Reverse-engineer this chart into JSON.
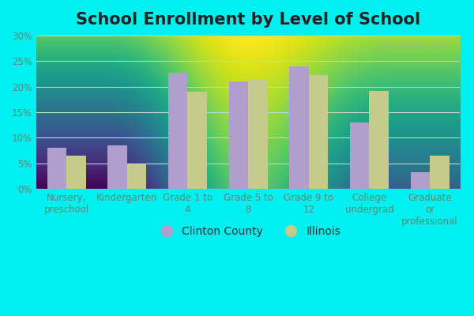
{
  "title": "School Enrollment by Level of School",
  "categories": [
    "Nursery,\npreschool",
    "Kindergarten",
    "Grade 1 to\n4",
    "Grade 5 to\n8",
    "Grade 9 to\n12",
    "College\nundergrad",
    "Graduate\nor\nprofessional"
  ],
  "clinton_county": [
    8.0,
    8.5,
    22.7,
    21.0,
    24.0,
    13.0,
    3.2
  ],
  "illinois": [
    6.5,
    4.8,
    19.0,
    21.3,
    22.3,
    19.2,
    6.5
  ],
  "clinton_color": "#b09fcc",
  "illinois_color": "#c5cb8a",
  "bg_top_color": "#e8f5ee",
  "bg_bottom_color": "#c2e8cc",
  "outer_background": "#00efef",
  "grid_color": "#d0ead8",
  "ylabel_ticks": [
    "0%",
    "5%",
    "10%",
    "15%",
    "20%",
    "25%",
    "30%"
  ],
  "ytick_values": [
    0,
    5,
    10,
    15,
    20,
    25,
    30
  ],
  "ylim": [
    0,
    30
  ],
  "legend_clinton": "Clinton County",
  "legend_illinois": "Illinois",
  "title_fontsize": 15,
  "tick_fontsize": 8.5,
  "legend_fontsize": 10,
  "bar_width": 0.32,
  "watermark": "City-Data.com",
  "tick_color": "#5a8a7a"
}
